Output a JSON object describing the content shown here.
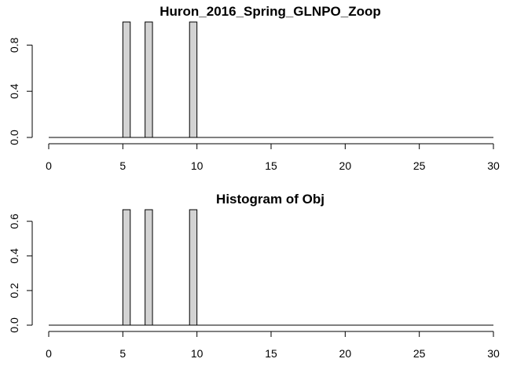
{
  "chart_data": [
    {
      "type": "bar",
      "title": "Huron_2016_Spring_GLNPO_Zoop",
      "xlabel": "",
      "ylabel": "",
      "xlim": [
        0,
        30
      ],
      "ylim": [
        0,
        1
      ],
      "x_ticks": [
        0,
        5,
        10,
        15,
        20,
        25,
        30
      ],
      "y_ticks": [
        0.0,
        0.4,
        0.8
      ],
      "y_tick_labels": [
        "0.0",
        "0.4",
        "0.8"
      ],
      "bars": [
        {
          "x0": 5.0,
          "x1": 5.5,
          "value": 1.0
        },
        {
          "x0": 6.5,
          "x1": 7.0,
          "value": 1.0
        },
        {
          "x0": 9.5,
          "x1": 10.0,
          "value": 1.0
        }
      ],
      "bar_color": "#d3d3d3",
      "grid": false
    },
    {
      "type": "bar",
      "title": "Histogram of Obj",
      "xlabel": "",
      "ylabel": "",
      "xlim": [
        0,
        30
      ],
      "ylim": [
        0,
        0.667
      ],
      "x_ticks": [
        0,
        5,
        10,
        15,
        20,
        25,
        30
      ],
      "y_ticks": [
        0.0,
        0.2,
        0.4,
        0.6
      ],
      "y_tick_labels": [
        "0.0",
        "0.2",
        "0.4",
        "0.6"
      ],
      "bars": [
        {
          "x0": 5.0,
          "x1": 5.5,
          "value": 0.667
        },
        {
          "x0": 6.5,
          "x1": 7.0,
          "value": 0.667
        },
        {
          "x0": 9.5,
          "x1": 10.0,
          "value": 0.667
        }
      ],
      "bar_color": "#d3d3d3",
      "grid": false
    }
  ]
}
